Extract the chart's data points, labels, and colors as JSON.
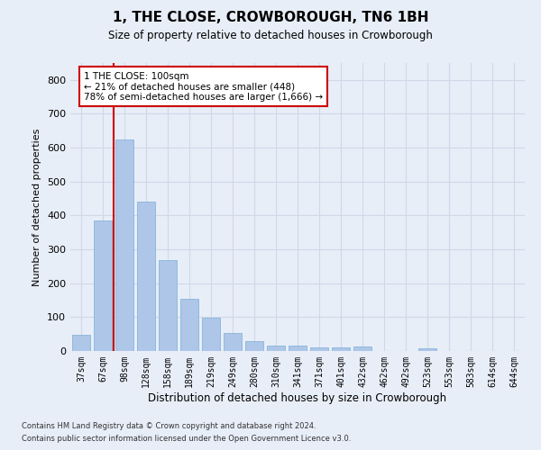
{
  "title": "1, THE CLOSE, CROWBOROUGH, TN6 1BH",
  "subtitle": "Size of property relative to detached houses in Crowborough",
  "xlabel": "Distribution of detached houses by size in Crowborough",
  "ylabel": "Number of detached properties",
  "categories": [
    "37sqm",
    "67sqm",
    "98sqm",
    "128sqm",
    "158sqm",
    "189sqm",
    "219sqm",
    "249sqm",
    "280sqm",
    "310sqm",
    "341sqm",
    "371sqm",
    "401sqm",
    "432sqm",
    "462sqm",
    "492sqm",
    "523sqm",
    "553sqm",
    "583sqm",
    "614sqm",
    "644sqm"
  ],
  "values": [
    47,
    385,
    625,
    440,
    267,
    155,
    97,
    52,
    28,
    15,
    15,
    10,
    10,
    12,
    0,
    0,
    8,
    0,
    0,
    0,
    0
  ],
  "bar_color": "#aec6e8",
  "bar_edge_color": "#7aafd4",
  "vline_color": "#cc0000",
  "annotation_text": "1 THE CLOSE: 100sqm\n← 21% of detached houses are smaller (448)\n78% of semi-detached houses are larger (1,666) →",
  "annotation_box_color": "#ffffff",
  "annotation_box_edge": "#cc0000",
  "grid_color": "#d0d8e8",
  "background_color": "#e8eef8",
  "ylim": [
    0,
    850
  ],
  "yticks": [
    0,
    100,
    200,
    300,
    400,
    500,
    600,
    700,
    800
  ],
  "footer_line1": "Contains HM Land Registry data © Crown copyright and database right 2024.",
  "footer_line2": "Contains public sector information licensed under the Open Government Licence v3.0."
}
